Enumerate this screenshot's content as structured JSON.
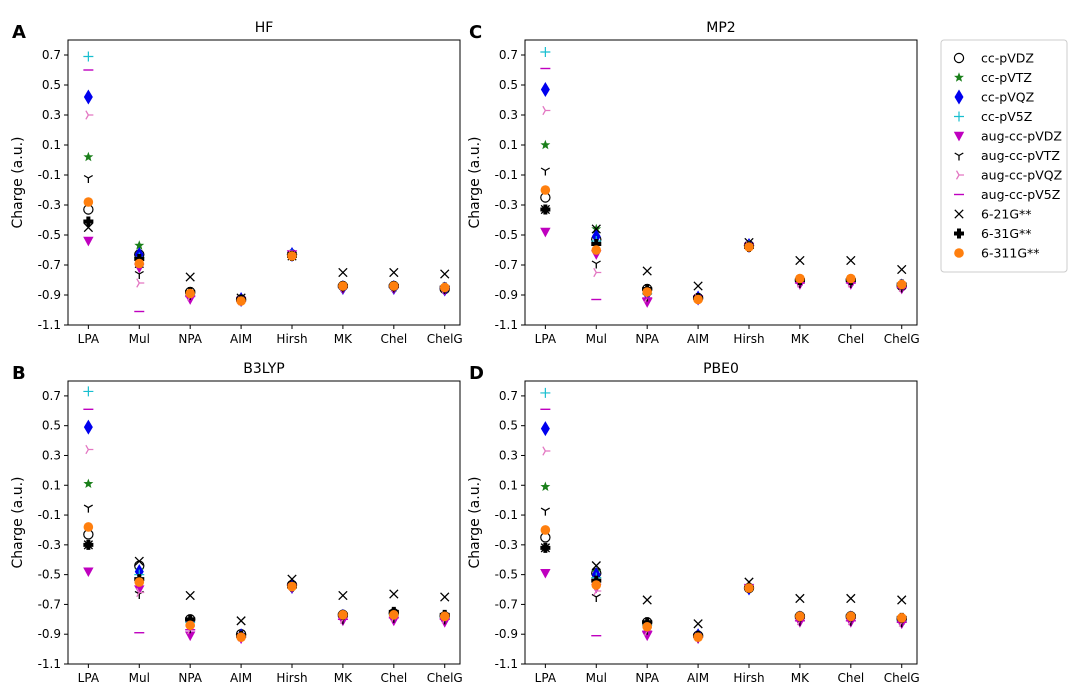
{
  "colors": {
    "cc-pVDZ": "#000000",
    "cc-pVTZ": "#1a7f1a",
    "cc-pVQZ": "#0000ee",
    "cc-pV5Z": "#17becf",
    "aug-cc-pVDZ": "#bf00bf",
    "aug-cc-pVTZ": "#000000",
    "aug-cc-pVQZ": "#e377c2",
    "aug-cc-pV5Z": "#bf00bf",
    "6-21G**": "#000000",
    "6-31G**": "#000000",
    "6-311G**": "#ff7f0e"
  },
  "legend": {
    "position": "top-right",
    "items": [
      {
        "name": "cc-pVDZ",
        "marker": "open-circle-icon"
      },
      {
        "name": "cc-pVTZ",
        "marker": "star-icon"
      },
      {
        "name": "cc-pVQZ",
        "marker": "thin-diamond-icon"
      },
      {
        "name": "cc-pV5Z",
        "marker": "plus-icon"
      },
      {
        "name": "aug-cc-pVDZ",
        "marker": "triangle-down-icon"
      },
      {
        "name": "aug-cc-pVTZ",
        "marker": "tri-down-icon"
      },
      {
        "name": "aug-cc-pVQZ",
        "marker": "tri-right-icon"
      },
      {
        "name": "aug-cc-pV5Z",
        "marker": "hline-icon"
      },
      {
        "name": "6-21G**",
        "marker": "x-icon"
      },
      {
        "name": "6-31G**",
        "marker": "filled-plus-icon"
      },
      {
        "name": "6-311G**",
        "marker": "filled-circle-icon"
      }
    ]
  },
  "chart_data": [
    {
      "panel": "A",
      "type": "scatter",
      "title": "HF",
      "xlabel": "",
      "ylabel": "Charge (a.u.)",
      "ylim": [
        -1.1,
        0.8
      ],
      "yticks": [
        "0.7",
        "0.5",
        "0.3",
        "0.1",
        "-0.1",
        "-0.3",
        "-0.5",
        "-0.7",
        "-0.9",
        "-1.1"
      ],
      "categories": [
        "LPA",
        "Mul",
        "NPA",
        "AIM",
        "Hirsh",
        "MK",
        "Chel",
        "ChelG"
      ],
      "series": [
        {
          "name": "cc-pVDZ",
          "values": [
            -0.33,
            -0.63,
            -0.88,
            -0.93,
            -0.63,
            -0.84,
            -0.84,
            -0.86
          ]
        },
        {
          "name": "cc-pVTZ",
          "values": [
            0.02,
            -0.57,
            -0.89,
            -0.93,
            -0.63,
            -0.84,
            -0.85,
            -0.86
          ]
        },
        {
          "name": "cc-pVQZ",
          "values": [
            0.42,
            -0.63,
            -0.9,
            -0.93,
            -0.63,
            -0.85,
            -0.85,
            -0.86
          ]
        },
        {
          "name": "cc-pV5Z",
          "values": [
            0.69,
            -0.65,
            -0.9,
            -0.93,
            -0.63,
            -0.85,
            -0.85,
            -0.86
          ]
        },
        {
          "name": "aug-cc-pVDZ",
          "values": [
            -0.54,
            -0.72,
            -0.93,
            -0.94,
            -0.63,
            -0.86,
            -0.86,
            -0.87
          ]
        },
        {
          "name": "aug-cc-pVTZ",
          "values": [
            -0.12,
            -0.76,
            -0.9,
            -0.93,
            -0.63,
            -0.85,
            -0.85,
            -0.86
          ]
        },
        {
          "name": "aug-cc-pVQZ",
          "values": [
            0.3,
            -0.82,
            -0.91,
            -0.94,
            -0.63,
            -0.85,
            -0.85,
            -0.86
          ]
        },
        {
          "name": "aug-cc-pV5Z",
          "values": [
            0.6,
            -1.01,
            -0.91,
            -0.94,
            -0.63,
            -0.85,
            -0.85,
            -0.86
          ]
        },
        {
          "name": "6-21G**",
          "values": [
            -0.45,
            -0.69,
            -0.78,
            -0.92,
            -0.64,
            -0.75,
            -0.75,
            -0.76
          ]
        },
        {
          "name": "6-31G**",
          "values": [
            -0.41,
            -0.66,
            -0.88,
            -0.93,
            -0.64,
            -0.84,
            -0.84,
            -0.85
          ]
        },
        {
          "name": "6-311G**",
          "values": [
            -0.28,
            -0.69,
            -0.89,
            -0.94,
            -0.64,
            -0.84,
            -0.84,
            -0.85
          ]
        }
      ]
    },
    {
      "panel": "C",
      "type": "scatter",
      "title": "MP2",
      "xlabel": "",
      "ylabel": "Charge (a.u.)",
      "ylim": [
        -1.1,
        0.8
      ],
      "yticks": [
        "0.7",
        "0.5",
        "0.3",
        "0.1",
        "-0.1",
        "-0.3",
        "-0.5",
        "-0.7",
        "-0.9",
        "-1.1"
      ],
      "categories": [
        "LPA",
        "Mul",
        "NPA",
        "AIM",
        "Hirsh",
        "MK",
        "Chel",
        "ChelG"
      ],
      "series": [
        {
          "name": "cc-pVDZ",
          "values": [
            -0.25,
            -0.53,
            -0.86,
            -0.92,
            -0.57,
            -0.8,
            -0.8,
            -0.84
          ]
        },
        {
          "name": "cc-pVTZ",
          "values": [
            0.1,
            -0.46,
            -0.88,
            -0.92,
            -0.57,
            -0.81,
            -0.81,
            -0.84
          ]
        },
        {
          "name": "cc-pVQZ",
          "values": [
            0.47,
            -0.51,
            -0.89,
            -0.92,
            -0.57,
            -0.81,
            -0.81,
            -0.84
          ]
        },
        {
          "name": "cc-pV5Z",
          "values": [
            0.72,
            -0.54,
            -0.89,
            -0.92,
            -0.57,
            -0.81,
            -0.81,
            -0.84
          ]
        },
        {
          "name": "aug-cc-pVDZ",
          "values": [
            -0.48,
            -0.63,
            -0.95,
            -0.93,
            -0.58,
            -0.83,
            -0.83,
            -0.86
          ]
        },
        {
          "name": "aug-cc-pVTZ",
          "values": [
            -0.07,
            -0.69,
            -0.91,
            -0.92,
            -0.57,
            -0.82,
            -0.82,
            -0.85
          ]
        },
        {
          "name": "aug-cc-pVQZ",
          "values": [
            0.33,
            -0.75,
            -0.92,
            -0.92,
            -0.57,
            -0.82,
            -0.82,
            -0.85
          ]
        },
        {
          "name": "aug-cc-pV5Z",
          "values": [
            0.61,
            -0.93,
            -0.92,
            -0.92,
            -0.57,
            -0.82,
            -0.82,
            -0.85
          ]
        },
        {
          "name": "6-21G**",
          "values": [
            -0.33,
            -0.46,
            -0.74,
            -0.84,
            -0.55,
            -0.67,
            -0.67,
            -0.73
          ]
        },
        {
          "name": "6-31G**",
          "values": [
            -0.33,
            -0.56,
            -0.86,
            -0.92,
            -0.58,
            -0.8,
            -0.8,
            -0.83
          ]
        },
        {
          "name": "6-311G**",
          "values": [
            -0.2,
            -0.6,
            -0.88,
            -0.93,
            -0.58,
            -0.79,
            -0.79,
            -0.83
          ]
        }
      ]
    },
    {
      "panel": "B",
      "type": "scatter",
      "title": "B3LYP",
      "xlabel": "",
      "ylabel": "Charge (a.u.)",
      "ylim": [
        -1.1,
        0.8
      ],
      "yticks": [
        "0.7",
        "0.5",
        "0.3",
        "0.1",
        "-0.1",
        "-0.3",
        "-0.5",
        "-0.7",
        "-0.9",
        "-1.1"
      ],
      "categories": [
        "LPA",
        "Mul",
        "NPA",
        "AIM",
        "Hirsh",
        "MK",
        "Chel",
        "ChelG"
      ],
      "series": [
        {
          "name": "cc-pVDZ",
          "values": [
            -0.23,
            -0.44,
            -0.8,
            -0.9,
            -0.57,
            -0.77,
            -0.76,
            -0.78
          ]
        },
        {
          "name": "cc-pVTZ",
          "values": [
            0.11,
            -0.47,
            -0.81,
            -0.91,
            -0.58,
            -0.78,
            -0.77,
            -0.79
          ]
        },
        {
          "name": "cc-pVQZ",
          "values": [
            0.49,
            -0.48,
            -0.82,
            -0.91,
            -0.58,
            -0.78,
            -0.77,
            -0.79
          ]
        },
        {
          "name": "cc-pV5Z",
          "values": [
            0.73,
            -0.5,
            -0.82,
            -0.91,
            -0.58,
            -0.78,
            -0.77,
            -0.79
          ]
        },
        {
          "name": "aug-cc-pVDZ",
          "values": [
            -0.48,
            -0.6,
            -0.91,
            -0.93,
            -0.59,
            -0.81,
            -0.81,
            -0.82
          ]
        },
        {
          "name": "aug-cc-pVTZ",
          "values": [
            -0.05,
            -0.63,
            -0.86,
            -0.91,
            -0.58,
            -0.8,
            -0.79,
            -0.8
          ]
        },
        {
          "name": "aug-cc-pVQZ",
          "values": [
            0.34,
            -0.62,
            -0.87,
            -0.92,
            -0.58,
            -0.8,
            -0.79,
            -0.8
          ]
        },
        {
          "name": "aug-cc-pV5Z",
          "values": [
            0.61,
            -0.89,
            -0.87,
            -0.92,
            -0.58,
            -0.8,
            -0.79,
            -0.8
          ]
        },
        {
          "name": "6-21G**",
          "values": [
            -0.3,
            -0.41,
            -0.64,
            -0.81,
            -0.53,
            -0.64,
            -0.63,
            -0.65
          ]
        },
        {
          "name": "6-31G**",
          "values": [
            -0.3,
            -0.53,
            -0.8,
            -0.91,
            -0.58,
            -0.77,
            -0.75,
            -0.77
          ]
        },
        {
          "name": "6-311G**",
          "values": [
            -0.18,
            -0.55,
            -0.84,
            -0.92,
            -0.58,
            -0.77,
            -0.77,
            -0.78
          ]
        }
      ]
    },
    {
      "panel": "D",
      "type": "scatter",
      "title": "PBE0",
      "xlabel": "",
      "ylabel": "Charge (a.u.)",
      "ylim": [
        -1.1,
        0.8
      ],
      "yticks": [
        "0.7",
        "0.5",
        "0.3",
        "0.1",
        "-0.1",
        "-0.3",
        "-0.5",
        "-0.7",
        "-0.9",
        "-1.1"
      ],
      "categories": [
        "LPA",
        "Mul",
        "NPA",
        "AIM",
        "Hirsh",
        "MK",
        "Chel",
        "ChelG"
      ],
      "series": [
        {
          "name": "cc-pVDZ",
          "values": [
            -0.25,
            -0.49,
            -0.82,
            -0.91,
            -0.59,
            -0.78,
            -0.78,
            -0.8
          ]
        },
        {
          "name": "cc-pVTZ",
          "values": [
            0.09,
            -0.48,
            -0.83,
            -0.91,
            -0.59,
            -0.79,
            -0.79,
            -0.81
          ]
        },
        {
          "name": "cc-pVQZ",
          "values": [
            0.48,
            -0.5,
            -0.84,
            -0.91,
            -0.59,
            -0.79,
            -0.79,
            -0.81
          ]
        },
        {
          "name": "cc-pV5Z",
          "values": [
            0.72,
            -0.52,
            -0.84,
            -0.91,
            -0.59,
            -0.79,
            -0.79,
            -0.81
          ]
        },
        {
          "name": "aug-cc-pVDZ",
          "values": [
            -0.49,
            -0.59,
            -0.91,
            -0.93,
            -0.59,
            -0.82,
            -0.82,
            -0.83
          ]
        },
        {
          "name": "aug-cc-pVTZ",
          "values": [
            -0.07,
            -0.65,
            -0.87,
            -0.92,
            -0.59,
            -0.81,
            -0.81,
            -0.82
          ]
        },
        {
          "name": "aug-cc-pVQZ",
          "values": [
            0.33,
            -0.61,
            -0.88,
            -0.92,
            -0.59,
            -0.81,
            -0.81,
            -0.82
          ]
        },
        {
          "name": "aug-cc-pV5Z",
          "values": [
            0.61,
            -0.91,
            -0.88,
            -0.92,
            -0.59,
            -0.81,
            -0.81,
            -0.82
          ]
        },
        {
          "name": "6-21G**",
          "values": [
            -0.32,
            -0.44,
            -0.67,
            -0.83,
            -0.55,
            -0.66,
            -0.66,
            -0.67
          ]
        },
        {
          "name": "6-31G**",
          "values": [
            -0.32,
            -0.54,
            -0.82,
            -0.91,
            -0.59,
            -0.78,
            -0.78,
            -0.79
          ]
        },
        {
          "name": "6-311G**",
          "values": [
            -0.2,
            -0.57,
            -0.85,
            -0.92,
            -0.59,
            -0.78,
            -0.78,
            -0.79
          ]
        }
      ]
    }
  ]
}
